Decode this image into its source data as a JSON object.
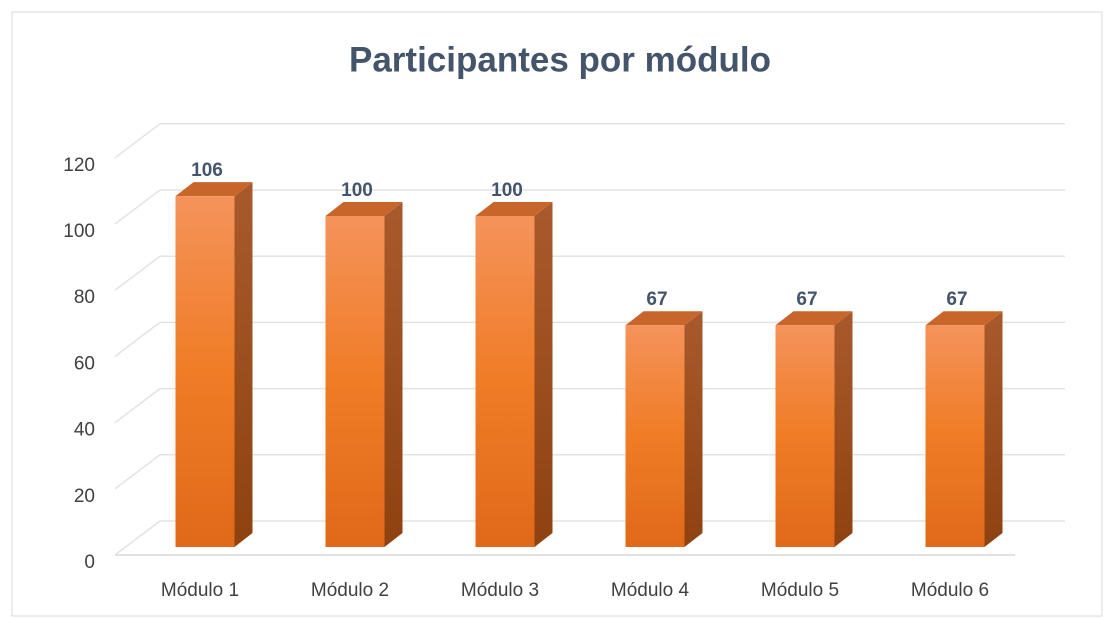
{
  "chart_data": {
    "type": "bar",
    "title": "Participantes por módulo",
    "categories": [
      "Módulo 1",
      "Módulo 2",
      "Módulo 3",
      "Módulo 4",
      "Módulo 5",
      "Módulo 6"
    ],
    "values": [
      106,
      100,
      100,
      67,
      67,
      67
    ],
    "color": "#ed7d31",
    "ylim": [
      0,
      120
    ],
    "yticks": [
      0,
      20,
      40,
      60,
      80,
      100,
      120
    ],
    "grid": true
  }
}
